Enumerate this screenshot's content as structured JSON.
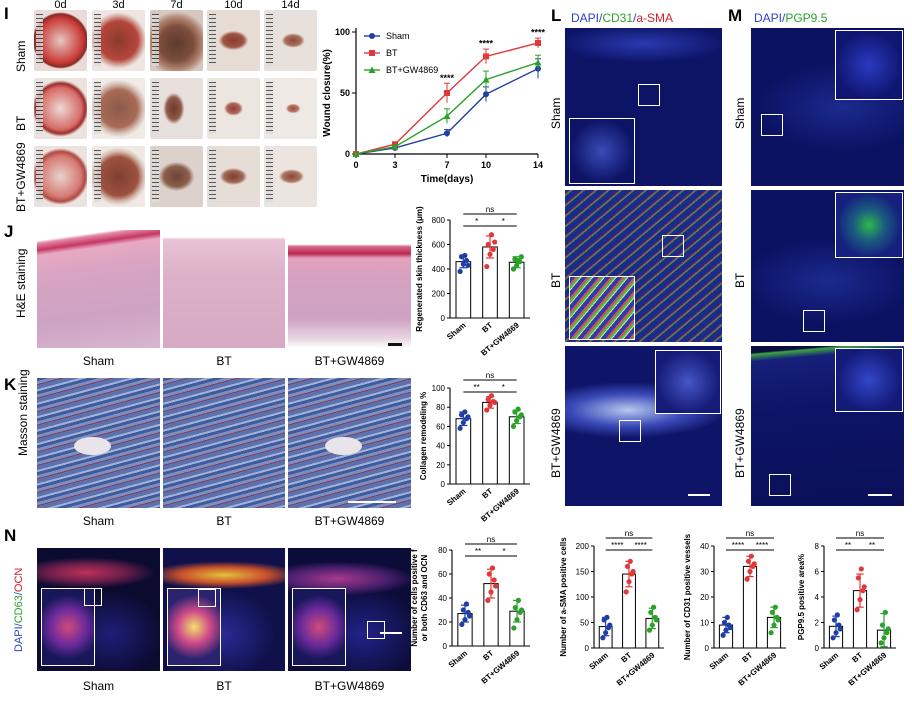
{
  "panels": {
    "I": {
      "letter": "I",
      "days": [
        "0d",
        "3d",
        "7d",
        "10d",
        "14d"
      ],
      "rows": [
        "Sham",
        "BT",
        "BT+GW4869"
      ]
    },
    "J": {
      "letter": "J",
      "stain": "H&E staining",
      "cols": [
        "Sham",
        "BT",
        "BT+GW4869"
      ]
    },
    "K": {
      "letter": "K",
      "stain": "Masson staining",
      "cols": [
        "Sham",
        "BT",
        "BT+GW4869"
      ]
    },
    "N": {
      "letter": "N",
      "stain_parts": [
        "DAPI/",
        "CD63",
        "/",
        "OCN"
      ],
      "cols": [
        "Sham",
        "BT",
        "BT+GW4869"
      ]
    },
    "L": {
      "letter": "L",
      "title_parts": [
        "DAPI/",
        "CD31",
        "/",
        "a-SMA"
      ],
      "rows": [
        "Sham",
        "BT",
        "BT+GW4869"
      ]
    },
    "M": {
      "letter": "M",
      "title_parts": [
        "DAPI/",
        "PGP9.5"
      ],
      "rows": [
        "Sham",
        "BT",
        "BT+GW4869"
      ]
    }
  },
  "colors": {
    "sham": "#1f3fa6",
    "bt": "#e0383b",
    "gw": "#2aa12a",
    "he": "#d9a3c0",
    "masson": "#5d7bb5"
  },
  "chart_data": [
    {
      "id": "wound",
      "type": "line",
      "x": [
        0,
        3,
        7,
        10,
        14
      ],
      "xlabel": "Time(days)",
      "ylabel": "Wound closure(%)",
      "xticks": [
        "0",
        "3",
        "7",
        "10",
        "14"
      ],
      "yticks": [
        "0",
        "50",
        "100"
      ],
      "ylim": [
        0,
        100
      ],
      "series": [
        {
          "name": "Sham",
          "values": [
            0,
            5,
            17,
            49,
            70
          ],
          "err": [
            0,
            1,
            3,
            6,
            8
          ]
        },
        {
          "name": "BT",
          "values": [
            0,
            8,
            50,
            80,
            91
          ],
          "err": [
            0,
            1,
            8,
            6,
            4
          ]
        },
        {
          "name": "BT+GW4869",
          "values": [
            0,
            6,
            31,
            61,
            75
          ],
          "err": [
            0,
            1,
            6,
            7,
            6
          ]
        }
      ],
      "annotations": [
        "****",
        "****",
        "****"
      ],
      "legend": "top-left"
    },
    {
      "id": "skin",
      "type": "bar",
      "categories": [
        "Sham",
        "BT",
        "BT+GW4869"
      ],
      "values": [
        460,
        580,
        455
      ],
      "err": [
        50,
        90,
        45
      ],
      "points": [
        [
          380,
          440,
          470,
          500,
          510,
          430
        ],
        [
          420,
          520,
          560,
          600,
          680,
          620
        ],
        [
          400,
          430,
          460,
          480,
          470,
          500
        ]
      ],
      "ylabel": "Regenerated skin thickness (μm)",
      "ylim": [
        0,
        800
      ],
      "yticks": [
        "0",
        "200",
        "400",
        "600",
        "800"
      ],
      "sig": [
        {
          "pair": [
            0,
            2
          ],
          "label": "ns"
        },
        {
          "pair": [
            0,
            1
          ],
          "label": "*"
        },
        {
          "pair": [
            1,
            2
          ],
          "label": "*"
        }
      ]
    },
    {
      "id": "collagen",
      "type": "bar",
      "categories": [
        "Sham",
        "BT",
        "BT+GW4869"
      ],
      "values": [
        68,
        85,
        70
      ],
      "err": [
        7,
        6,
        7
      ],
      "points": [
        [
          58,
          64,
          68,
          72,
          75,
          70
        ],
        [
          77,
          82,
          86,
          88,
          92,
          85
        ],
        [
          60,
          66,
          70,
          75,
          78,
          72
        ]
      ],
      "ylabel": "Collagen remodeling %",
      "ylim": [
        0,
        100
      ],
      "yticks": [
        "0",
        "20",
        "40",
        "60",
        "80",
        "100"
      ],
      "sig": [
        {
          "pair": [
            0,
            2
          ],
          "label": "ns"
        },
        {
          "pair": [
            0,
            1
          ],
          "label": "**"
        },
        {
          "pair": [
            1,
            2
          ],
          "label": "*"
        }
      ]
    },
    {
      "id": "cd63",
      "type": "bar",
      "categories": [
        "Sham",
        "BT",
        "BT+GW4869"
      ],
      "values": [
        27,
        52,
        29
      ],
      "err": [
        7,
        12,
        9
      ],
      "points": [
        [
          18,
          22,
          28,
          30,
          35,
          25
        ],
        [
          38,
          45,
          55,
          60,
          65,
          50
        ],
        [
          15,
          22,
          28,
          32,
          38,
          30
        ]
      ],
      "ylabel": "Number of cells positive for both CD63 and OCN",
      "ylim": [
        0,
        80
      ],
      "yticks": [
        "0",
        "20",
        "40",
        "60",
        "80"
      ],
      "sig": [
        {
          "pair": [
            0,
            2
          ],
          "label": "ns"
        },
        {
          "pair": [
            0,
            1
          ],
          "label": "**"
        },
        {
          "pair": [
            1,
            2
          ],
          "label": "*"
        }
      ]
    },
    {
      "id": "asma",
      "type": "bar",
      "categories": [
        "Sham",
        "BT",
        "BT+GW4869"
      ],
      "values": [
        42,
        145,
        58
      ],
      "err": [
        18,
        25,
        20
      ],
      "points": [
        [
          20,
          30,
          40,
          55,
          60,
          45
        ],
        [
          110,
          130,
          145,
          160,
          170,
          150
        ],
        [
          35,
          45,
          60,
          70,
          80,
          55
        ]
      ],
      "ylabel": "Number of a-SMA positive cells",
      "ylim": [
        0,
        200
      ],
      "yticks": [
        "0",
        "50",
        "100",
        "150",
        "200"
      ],
      "sig": [
        {
          "pair": [
            0,
            2
          ],
          "label": "ns"
        },
        {
          "pair": [
            0,
            1
          ],
          "label": "****"
        },
        {
          "pair": [
            1,
            2
          ],
          "label": "****"
        }
      ]
    },
    {
      "id": "cd31",
      "type": "bar",
      "categories": [
        "Sham",
        "BT",
        "BT+GW4869"
      ],
      "values": [
        9,
        32,
        12
      ],
      "err": [
        3,
        4,
        4
      ],
      "points": [
        [
          5,
          7,
          9,
          10,
          12,
          8
        ],
        [
          27,
          30,
          32,
          34,
          36,
          33
        ],
        [
          6,
          9,
          12,
          14,
          16,
          11
        ]
      ],
      "ylabel": "Number of CD31 positive vessels",
      "ylim": [
        0,
        40
      ],
      "yticks": [
        "0",
        "10",
        "20",
        "30",
        "40"
      ],
      "sig": [
        {
          "pair": [
            0,
            2
          ],
          "label": "ns"
        },
        {
          "pair": [
            0,
            1
          ],
          "label": "****"
        },
        {
          "pair": [
            1,
            2
          ],
          "label": "****"
        }
      ]
    },
    {
      "id": "pgp",
      "type": "bar",
      "categories": [
        "Sham",
        "BT",
        "BT+GW4869"
      ],
      "values": [
        1.7,
        4.5,
        1.4
      ],
      "err": [
        0.8,
        1.3,
        1.3
      ],
      "points": [
        [
          0.8,
          1.2,
          1.8,
          2.2,
          2.6,
          1.5
        ],
        [
          3,
          3.8,
          4.5,
          5.5,
          6.2,
          4.8
        ],
        [
          0.4,
          0.8,
          1.2,
          1.8,
          2.8,
          1.5
        ]
      ],
      "ylabel": "PGP9.5 positive area%",
      "ylim": [
        0,
        8
      ],
      "yticks": [
        "0",
        "2",
        "4",
        "6",
        "8"
      ],
      "sig": [
        {
          "pair": [
            0,
            2
          ],
          "label": "ns"
        },
        {
          "pair": [
            0,
            1
          ],
          "label": "**"
        },
        {
          "pair": [
            1,
            2
          ],
          "label": "**"
        }
      ]
    }
  ]
}
